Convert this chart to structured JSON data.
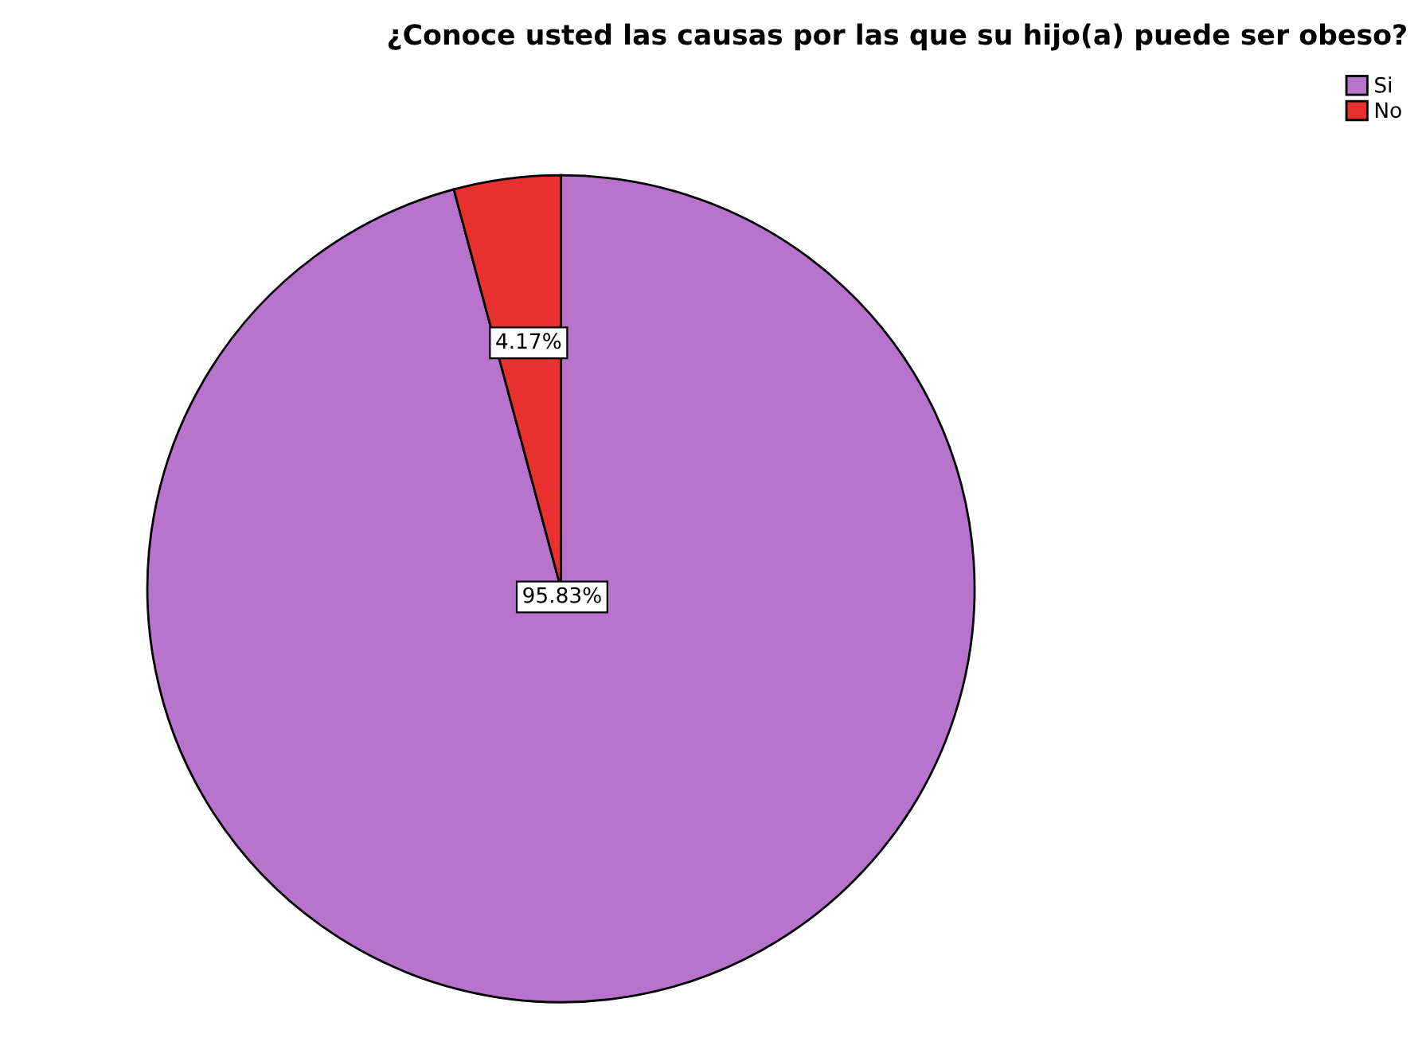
{
  "chart_data": {
    "type": "pie",
    "title": "¿Conoce usted las causas por las que su hijo(a) puede ser obeso?",
    "categories": [
      "Si",
      "No"
    ],
    "values": [
      95.83,
      4.17
    ],
    "colors": [
      "#b873cc",
      "#e8302f"
    ],
    "value_labels": [
      "95.83%",
      "4.17%"
    ],
    "legend": "top right"
  }
}
